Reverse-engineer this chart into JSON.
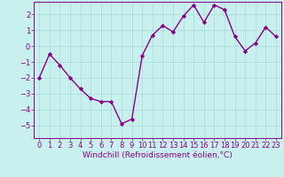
{
  "x": [
    0,
    1,
    2,
    3,
    4,
    5,
    6,
    7,
    8,
    9,
    10,
    11,
    12,
    13,
    14,
    15,
    16,
    17,
    18,
    19,
    20,
    21,
    22,
    23
  ],
  "y": [
    -2,
    -0.5,
    -1.2,
    -2.0,
    -2.7,
    -3.3,
    -3.5,
    -3.5,
    -4.9,
    -4.6,
    -0.6,
    0.7,
    1.3,
    0.9,
    1.9,
    2.6,
    1.5,
    2.6,
    2.3,
    0.6,
    -0.3,
    0.2,
    1.2,
    0.6
  ],
  "line_color": "#880088",
  "marker": "D",
  "markersize": 2.2,
  "linewidth": 1.0,
  "xlabel": "Windchill (Refroidissement éolien,°C)",
  "xlim": [
    -0.5,
    23.5
  ],
  "ylim": [
    -5.8,
    2.8
  ],
  "yticks": [
    -5,
    -4,
    -3,
    -2,
    -1,
    0,
    1,
    2
  ],
  "xticks": [
    0,
    1,
    2,
    3,
    4,
    5,
    6,
    7,
    8,
    9,
    10,
    11,
    12,
    13,
    14,
    15,
    16,
    17,
    18,
    19,
    20,
    21,
    22,
    23
  ],
  "bg_color": "#c8f0ee",
  "grid_color": "#a8dcd8",
  "axis_color": "#880088",
  "tick_color": "#880088",
  "label_color": "#880088",
  "xlabel_fontsize": 6.5,
  "tick_fontsize": 6.0
}
